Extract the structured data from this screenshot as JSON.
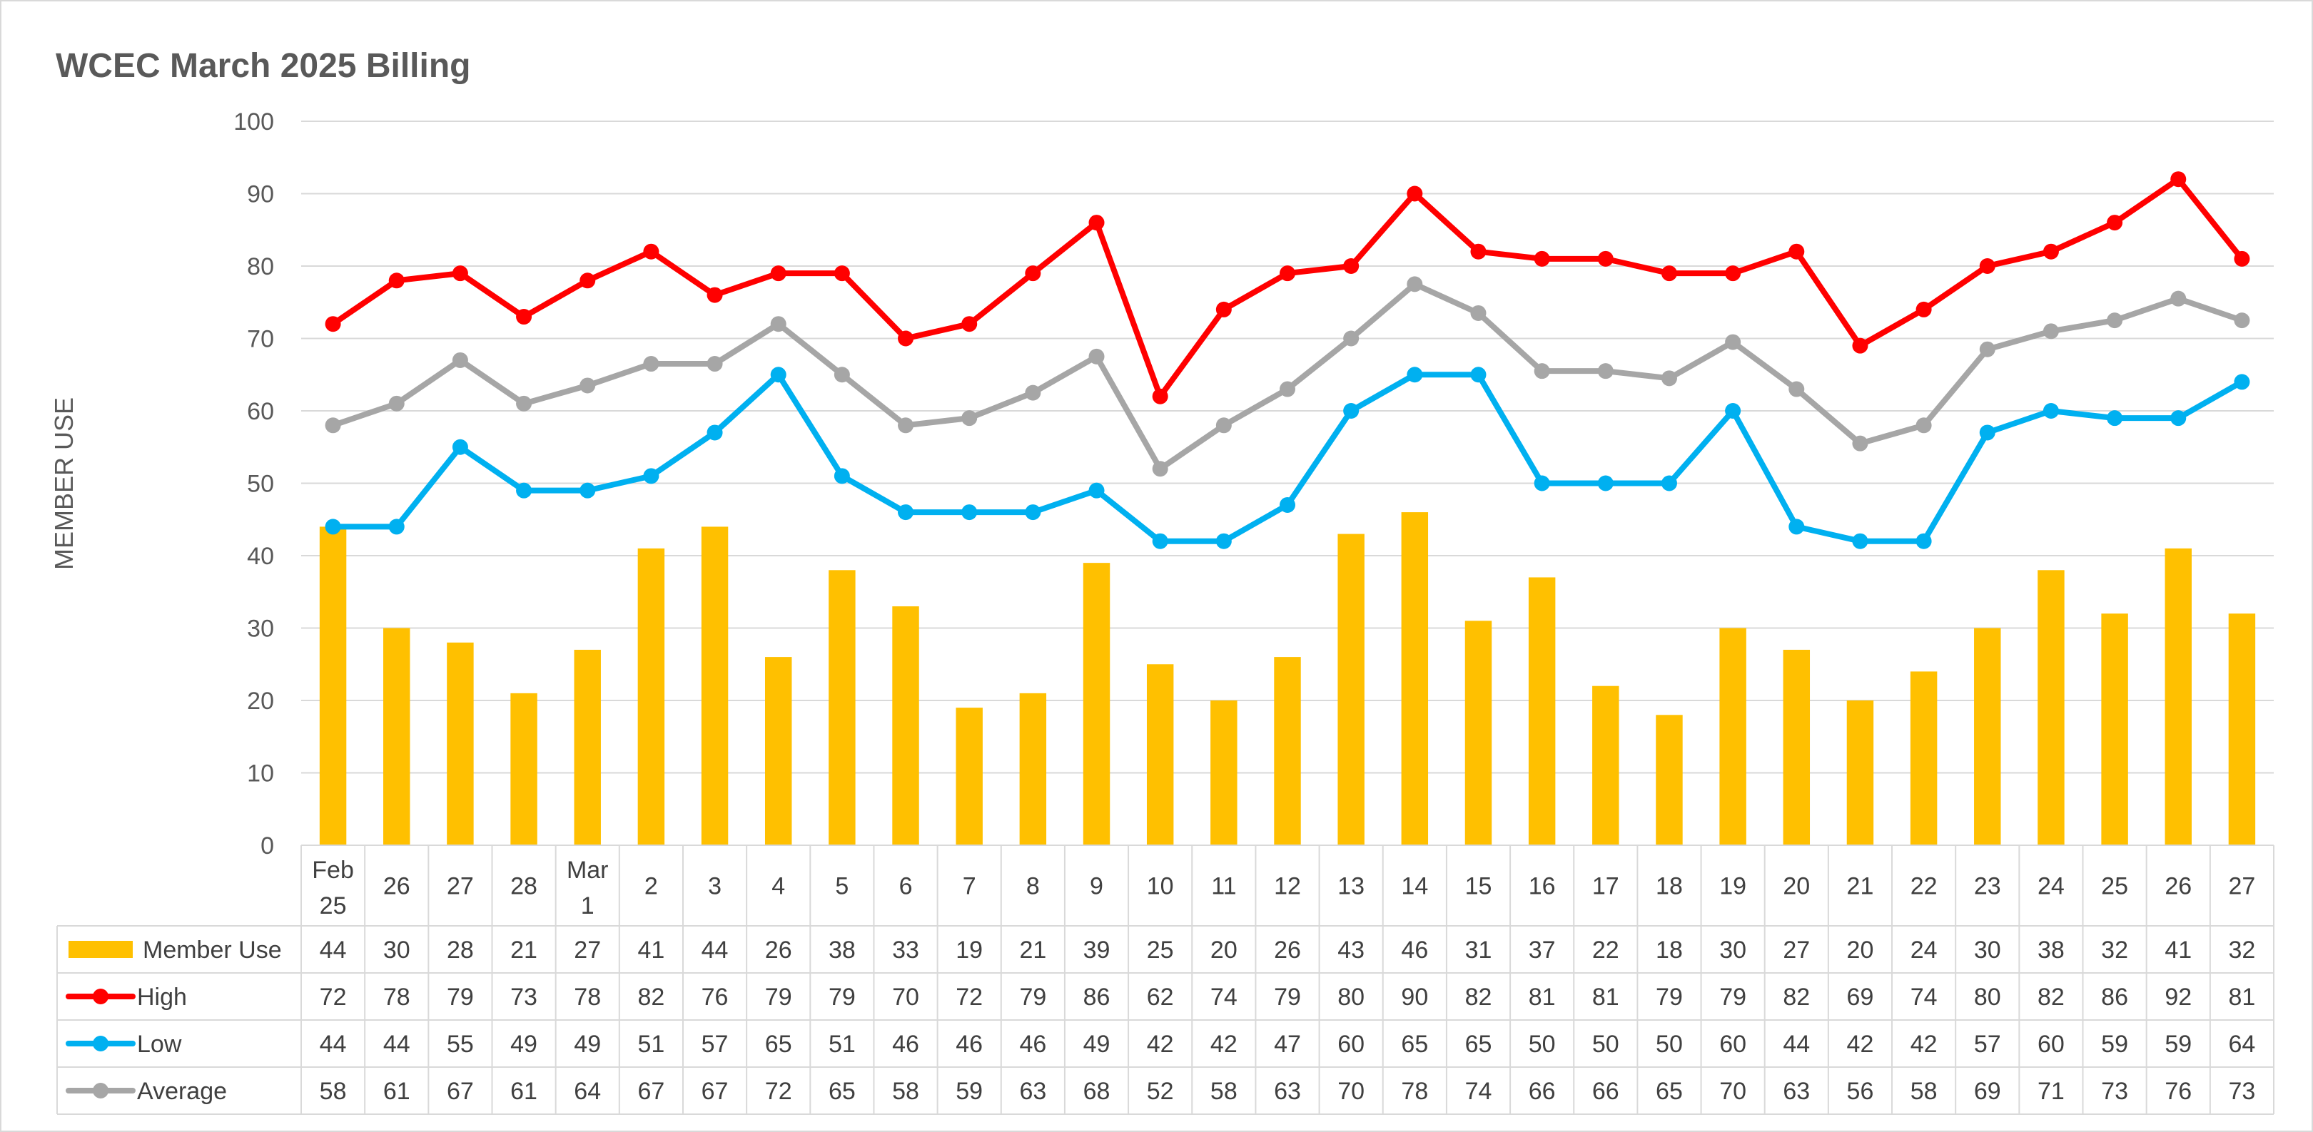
{
  "chart_data": {
    "type": "bar",
    "title": "WCEC March 2025 Billing",
    "ylabel": "MEMBER USE",
    "xlabel": "",
    "ylim": [
      0,
      100
    ],
    "yticks": [
      0,
      10,
      20,
      30,
      40,
      50,
      60,
      70,
      80,
      90,
      100
    ],
    "grid": true,
    "legend": "data-table",
    "categories": [
      [
        "Feb",
        "25"
      ],
      [
        "26"
      ],
      [
        "27"
      ],
      [
        "28"
      ],
      [
        "Mar",
        "1"
      ],
      [
        "2"
      ],
      [
        "3"
      ],
      [
        "4"
      ],
      [
        "5"
      ],
      [
        "6"
      ],
      [
        "7"
      ],
      [
        "8"
      ],
      [
        "9"
      ],
      [
        "10"
      ],
      [
        "11"
      ],
      [
        "12"
      ],
      [
        "13"
      ],
      [
        "14"
      ],
      [
        "15"
      ],
      [
        "16"
      ],
      [
        "17"
      ],
      [
        "18"
      ],
      [
        "19"
      ],
      [
        "20"
      ],
      [
        "21"
      ],
      [
        "22"
      ],
      [
        "23"
      ],
      [
        "24"
      ],
      [
        "25"
      ],
      [
        "26"
      ],
      [
        "27"
      ]
    ],
    "series": [
      {
        "name": "Member Use",
        "type": "bar",
        "color": "#FFC000",
        "values": [
          44,
          30,
          28,
          21,
          27,
          41,
          44,
          26,
          38,
          33,
          19,
          21,
          39,
          25,
          20,
          26,
          43,
          46,
          31,
          37,
          22,
          18,
          30,
          27,
          20,
          24,
          30,
          38,
          32,
          41,
          32
        ]
      },
      {
        "name": "High",
        "type": "line",
        "color": "#FF0000",
        "values": [
          72,
          78,
          79,
          73,
          78,
          82,
          76,
          79,
          79,
          70,
          72,
          79,
          86,
          62,
          74,
          79,
          80,
          90,
          82,
          81,
          81,
          79,
          79,
          82,
          69,
          74,
          80,
          82,
          86,
          92,
          81
        ]
      },
      {
        "name": "Low",
        "type": "line",
        "color": "#00B0F0",
        "values": [
          44,
          44,
          55,
          49,
          49,
          51,
          57,
          65,
          51,
          46,
          46,
          46,
          49,
          42,
          42,
          47,
          60,
          65,
          65,
          50,
          50,
          50,
          60,
          44,
          42,
          42,
          57,
          60,
          59,
          59,
          64
        ]
      },
      {
        "name": "Average",
        "type": "line",
        "color": "#A6A6A6",
        "values": [
          58,
          61,
          67,
          61,
          63.5,
          66.5,
          66.5,
          72,
          65,
          58,
          59,
          62.5,
          67.5,
          52,
          58,
          63,
          70,
          77.5,
          73.5,
          65.5,
          65.5,
          64.5,
          69.5,
          63,
          55.5,
          58,
          68.5,
          71,
          72.5,
          75.5,
          72.5
        ],
        "table_values": [
          58,
          61,
          67,
          61,
          64,
          67,
          67,
          72,
          65,
          58,
          59,
          63,
          68,
          52,
          58,
          63,
          70,
          78,
          74,
          66,
          66,
          65,
          70,
          63,
          56,
          58,
          69,
          71,
          73,
          76,
          73
        ]
      }
    ]
  }
}
